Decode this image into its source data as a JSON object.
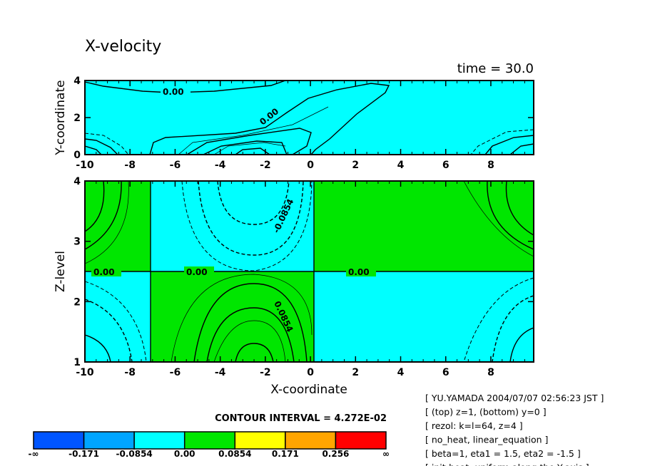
{
  "chart_data": {
    "type": "heatmap",
    "subtype": "filled-contour",
    "title": "X-velocity",
    "time_label": "time = 30.0",
    "panels": [
      {
        "name": "top",
        "xlabel": "",
        "ylabel": "Y-coordinate",
        "xlim": [
          -10,
          9.9
        ],
        "ylim": [
          0,
          4
        ],
        "xticks": [
          "-10",
          "-8",
          "-6",
          "-4",
          "-2",
          "0",
          "2",
          "4",
          "6",
          "8"
        ],
        "yticks": [
          "0",
          "2",
          "4"
        ],
        "contour_labels": [
          "0.00",
          "0.00"
        ]
      },
      {
        "name": "bottom",
        "xlabel": "X-coordinate",
        "ylabel": "Z-level",
        "xlim": [
          -10,
          9.9
        ],
        "ylim": [
          1,
          4
        ],
        "xticks": [
          "-10",
          "-8",
          "-6",
          "-4",
          "-2",
          "0",
          "2",
          "4",
          "6",
          "8"
        ],
        "yticks": [
          "1",
          "2",
          "3",
          "4"
        ],
        "contour_labels": [
          "0.00",
          "0.00",
          "0.00",
          "-0.0854",
          "0.0854"
        ]
      }
    ],
    "contour_interval": "CONTOUR INTERVAL = 4.272E-02",
    "colorbar": {
      "levels": [
        "-∞",
        "-0.171",
        "-0.0854",
        "0.00",
        "0.0854",
        "0.171",
        "0.256",
        "∞"
      ],
      "colors": [
        "#0055ff",
        "#00a5ff",
        "#00ffff",
        "#00e600",
        "#ffff00",
        "#ffa500",
        "#ff0000"
      ]
    }
  },
  "info_lines": [
    "[ YU.YAMADA 2004/07/07 02:56:23 JST ]",
    "[ (top) z=1, (bottom) y=0 ]",
    "[ rezol: k=l=64, z=4 ]",
    "[ no_heat, linear_equation ]",
    "[ beta=1, eta1 = 1.5, eta2 = -1.5 ]",
    "[ init-heat: uniform along the Y-axis ]"
  ]
}
